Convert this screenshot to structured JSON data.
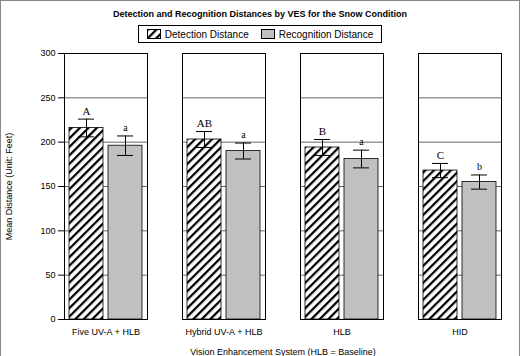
{
  "chart_data": {
    "type": "bar",
    "title": "Detection and Recognition Distances by VES for the Snow Condition",
    "x_label": "Vision Enhancement System (HLB = Baseline)",
    "y_label": "Mean Distance (Unit: Feet)",
    "categories": [
      "Five UV-A + HLB",
      "Hybrid UV-A + HLB",
      "HLB",
      "HID"
    ],
    "series": [
      {
        "name": "Detection Distance",
        "color": "#000000",
        "marker": "hatch",
        "values": [
          216,
          203,
          194,
          168
        ],
        "errors": [
          10,
          9,
          9,
          8
        ],
        "group_labels": [
          "A",
          "AB",
          "B",
          "C"
        ]
      },
      {
        "name": "Recognition Distance",
        "color": "#c0c0c0",
        "marker": "solid",
        "values": [
          196,
          190,
          181,
          155
        ],
        "errors": [
          11,
          9,
          10,
          8
        ],
        "group_labels": [
          "a",
          "a",
          "a",
          "b"
        ]
      }
    ],
    "ylim": [
      0,
      300
    ],
    "yticks": [
      0,
      50,
      100,
      150,
      200,
      250,
      300
    ],
    "grid": true,
    "legend": "top"
  }
}
